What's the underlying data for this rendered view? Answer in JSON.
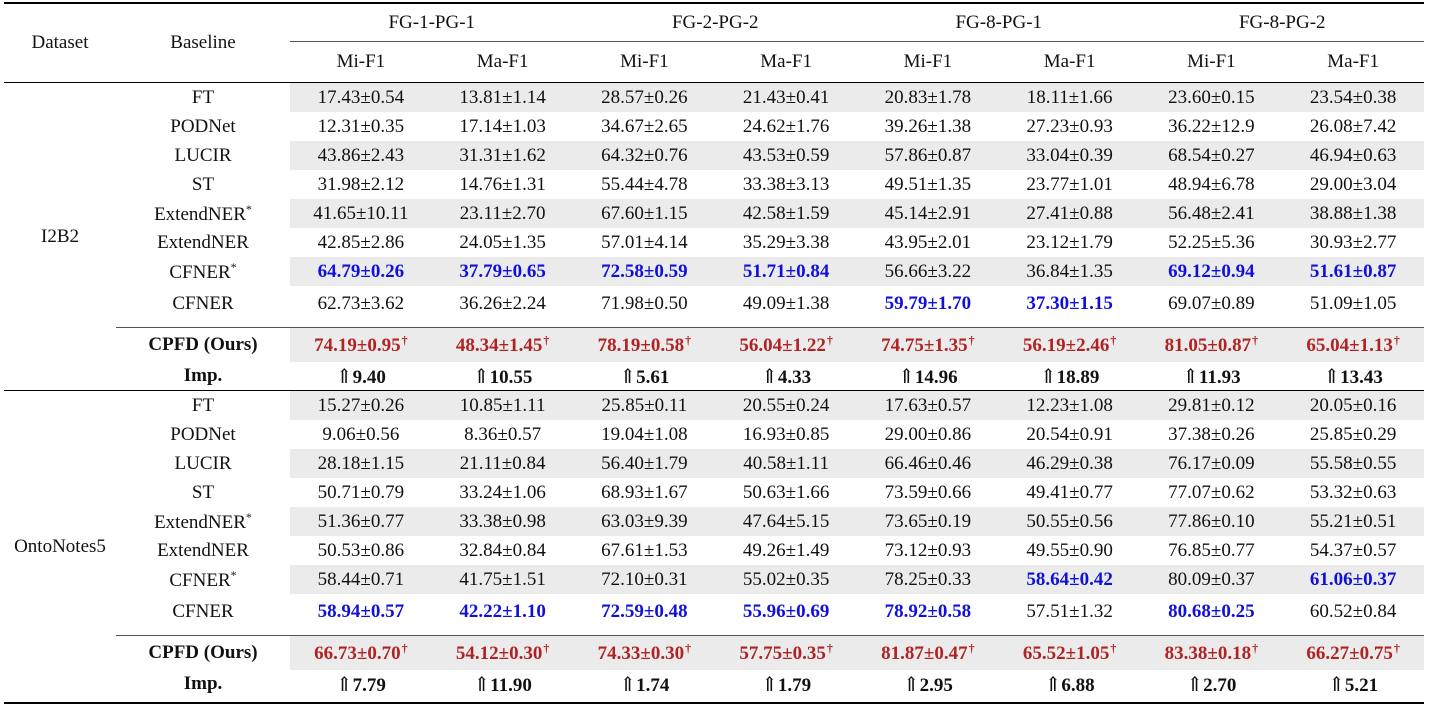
{
  "header": {
    "dataset": "Dataset",
    "baseline": "Baseline",
    "groups": [
      "FG-1-PG-1",
      "FG-2-PG-2",
      "FG-8-PG-1",
      "FG-8-PG-2"
    ],
    "metrics": [
      "Mi-F1",
      "Ma-F1"
    ]
  },
  "marks": {
    "dagger": "†",
    "star": "*",
    "arrow": "⇑"
  },
  "colors": {
    "best": "#1010dd",
    "ours": "#b02323",
    "shade": "#ebebeb"
  },
  "sections": [
    {
      "dataset": "I2B2",
      "rows": [
        {
          "name": "FT",
          "star": false,
          "cells": [
            {
              "v": "17.43±0.54"
            },
            {
              "v": "13.81±1.14"
            },
            {
              "v": "28.57±0.26"
            },
            {
              "v": "21.43±0.41"
            },
            {
              "v": "20.83±1.78"
            },
            {
              "v": "18.11±1.66"
            },
            {
              "v": "23.60±0.15"
            },
            {
              "v": "23.54±0.38"
            }
          ]
        },
        {
          "name": "PODNet",
          "star": false,
          "cells": [
            {
              "v": "12.31±0.35"
            },
            {
              "v": "17.14±1.03"
            },
            {
              "v": "34.67±2.65"
            },
            {
              "v": "24.62±1.76"
            },
            {
              "v": "39.26±1.38"
            },
            {
              "v": "27.23±0.93"
            },
            {
              "v": "36.22±12.9"
            },
            {
              "v": "26.08±7.42"
            }
          ]
        },
        {
          "name": "LUCIR",
          "star": false,
          "cells": [
            {
              "v": "43.86±2.43"
            },
            {
              "v": "31.31±1.62"
            },
            {
              "v": "64.32±0.76"
            },
            {
              "v": "43.53±0.59"
            },
            {
              "v": "57.86±0.87"
            },
            {
              "v": "33.04±0.39"
            },
            {
              "v": "68.54±0.27"
            },
            {
              "v": "46.94±0.63"
            }
          ]
        },
        {
          "name": "ST",
          "star": false,
          "cells": [
            {
              "v": "31.98±2.12"
            },
            {
              "v": "14.76±1.31"
            },
            {
              "v": "55.44±4.78"
            },
            {
              "v": "33.38±3.13"
            },
            {
              "v": "49.51±1.35"
            },
            {
              "v": "23.77±1.01"
            },
            {
              "v": "48.94±6.78"
            },
            {
              "v": "29.00±3.04"
            }
          ]
        },
        {
          "name": "ExtendNER",
          "star": true,
          "cells": [
            {
              "v": "41.65±10.11"
            },
            {
              "v": "23.11±2.70"
            },
            {
              "v": "67.60±1.15"
            },
            {
              "v": "42.58±1.59"
            },
            {
              "v": "45.14±2.91"
            },
            {
              "v": "27.41±0.88"
            },
            {
              "v": "56.48±2.41"
            },
            {
              "v": "38.88±1.38"
            }
          ]
        },
        {
          "name": "ExtendNER",
          "star": false,
          "cells": [
            {
              "v": "42.85±2.86"
            },
            {
              "v": "24.05±1.35"
            },
            {
              "v": "57.01±4.14"
            },
            {
              "v": "35.29±3.38"
            },
            {
              "v": "43.95±2.01"
            },
            {
              "v": "23.12±1.79"
            },
            {
              "v": "52.25±5.36"
            },
            {
              "v": "30.93±2.77"
            }
          ]
        },
        {
          "name": "CFNER",
          "star": true,
          "cells": [
            {
              "v": "64.79±0.26",
              "s": "blue"
            },
            {
              "v": "37.79±0.65",
              "s": "blue"
            },
            {
              "v": "72.58±0.59",
              "s": "blue"
            },
            {
              "v": "51.71±0.84",
              "s": "blue"
            },
            {
              "v": "56.66±3.22"
            },
            {
              "v": "36.84±1.35"
            },
            {
              "v": "69.12±0.94",
              "s": "blue"
            },
            {
              "v": "51.61±0.87",
              "s": "blue"
            }
          ]
        },
        {
          "name": "CFNER",
          "star": false,
          "cells": [
            {
              "v": "62.73±3.62"
            },
            {
              "v": "36.26±2.24"
            },
            {
              "v": "71.98±0.50"
            },
            {
              "v": "49.09±1.38"
            },
            {
              "v": "59.79±1.70",
              "s": "blue"
            },
            {
              "v": "37.30±1.15",
              "s": "blue"
            },
            {
              "v": "69.07±0.89"
            },
            {
              "v": "51.09±1.05"
            }
          ]
        }
      ],
      "ours": {
        "name": "CPFD (Ours)",
        "cells": [
          "74.19±0.95",
          "48.34±1.45",
          "78.19±0.58",
          "56.04±1.22",
          "74.75±1.35",
          "56.19±2.46",
          "81.05±0.87",
          "65.04±1.13"
        ]
      },
      "imp": {
        "name": "Imp.",
        "cells": [
          "9.40",
          "10.55",
          "5.61",
          "4.33",
          "14.96",
          "18.89",
          "11.93",
          "13.43"
        ]
      }
    },
    {
      "dataset": "OntoNotes5",
      "rows": [
        {
          "name": "FT",
          "star": false,
          "cells": [
            {
              "v": "15.27±0.26"
            },
            {
              "v": "10.85±1.11"
            },
            {
              "v": "25.85±0.11"
            },
            {
              "v": "20.55±0.24"
            },
            {
              "v": "17.63±0.57"
            },
            {
              "v": "12.23±1.08"
            },
            {
              "v": "29.81±0.12"
            },
            {
              "v": "20.05±0.16"
            }
          ]
        },
        {
          "name": "PODNet",
          "star": false,
          "cells": [
            {
              "v": "9.06±0.56"
            },
            {
              "v": "8.36±0.57"
            },
            {
              "v": "19.04±1.08"
            },
            {
              "v": "16.93±0.85"
            },
            {
              "v": "29.00±0.86"
            },
            {
              "v": "20.54±0.91"
            },
            {
              "v": "37.38±0.26"
            },
            {
              "v": "25.85±0.29"
            }
          ]
        },
        {
          "name": "LUCIR",
          "star": false,
          "cells": [
            {
              "v": "28.18±1.15"
            },
            {
              "v": "21.11±0.84"
            },
            {
              "v": "56.40±1.79"
            },
            {
              "v": "40.58±1.11"
            },
            {
              "v": "66.46±0.46"
            },
            {
              "v": "46.29±0.38"
            },
            {
              "v": "76.17±0.09"
            },
            {
              "v": "55.58±0.55"
            }
          ]
        },
        {
          "name": "ST",
          "star": false,
          "cells": [
            {
              "v": "50.71±0.79"
            },
            {
              "v": "33.24±1.06"
            },
            {
              "v": "68.93±1.67"
            },
            {
              "v": "50.63±1.66"
            },
            {
              "v": "73.59±0.66"
            },
            {
              "v": "49.41±0.77"
            },
            {
              "v": "77.07±0.62"
            },
            {
              "v": "53.32±0.63"
            }
          ]
        },
        {
          "name": "ExtendNER",
          "star": true,
          "cells": [
            {
              "v": "51.36±0.77"
            },
            {
              "v": "33.38±0.98"
            },
            {
              "v": "63.03±9.39"
            },
            {
              "v": "47.64±5.15"
            },
            {
              "v": "73.65±0.19"
            },
            {
              "v": "50.55±0.56"
            },
            {
              "v": "77.86±0.10"
            },
            {
              "v": "55.21±0.51"
            }
          ]
        },
        {
          "name": "ExtendNER",
          "star": false,
          "cells": [
            {
              "v": "50.53±0.86"
            },
            {
              "v": "32.84±0.84"
            },
            {
              "v": "67.61±1.53"
            },
            {
              "v": "49.26±1.49"
            },
            {
              "v": "73.12±0.93"
            },
            {
              "v": "49.55±0.90"
            },
            {
              "v": "76.85±0.77"
            },
            {
              "v": "54.37±0.57"
            }
          ]
        },
        {
          "name": "CFNER",
          "star": true,
          "cells": [
            {
              "v": "58.44±0.71"
            },
            {
              "v": "41.75±1.51"
            },
            {
              "v": "72.10±0.31"
            },
            {
              "v": "55.02±0.35"
            },
            {
              "v": "78.25±0.33"
            },
            {
              "v": "58.64±0.42",
              "s": "blue"
            },
            {
              "v": "80.09±0.37"
            },
            {
              "v": "61.06±0.37",
              "s": "blue"
            }
          ]
        },
        {
          "name": "CFNER",
          "star": false,
          "cells": [
            {
              "v": "58.94±0.57",
              "s": "blue"
            },
            {
              "v": "42.22±1.10",
              "s": "blue"
            },
            {
              "v": "72.59±0.48",
              "s": "blue"
            },
            {
              "v": "55.96±0.69",
              "s": "blue"
            },
            {
              "v": "78.92±0.58",
              "s": "blue"
            },
            {
              "v": "57.51±1.32"
            },
            {
              "v": "80.68±0.25",
              "s": "blue"
            },
            {
              "v": "60.52±0.84"
            }
          ]
        }
      ],
      "ours": {
        "name": "CPFD (Ours)",
        "cells": [
          "66.73±0.70",
          "54.12±0.30",
          "74.33±0.30",
          "57.75±0.35",
          "81.87±0.47",
          "65.52±1.05",
          "83.38±0.18",
          "66.27±0.75"
        ]
      },
      "imp": {
        "name": "Imp.",
        "cells": [
          "7.79",
          "11.90",
          "1.74",
          "1.79",
          "2.95",
          "6.88",
          "2.70",
          "5.21"
        ]
      }
    }
  ]
}
